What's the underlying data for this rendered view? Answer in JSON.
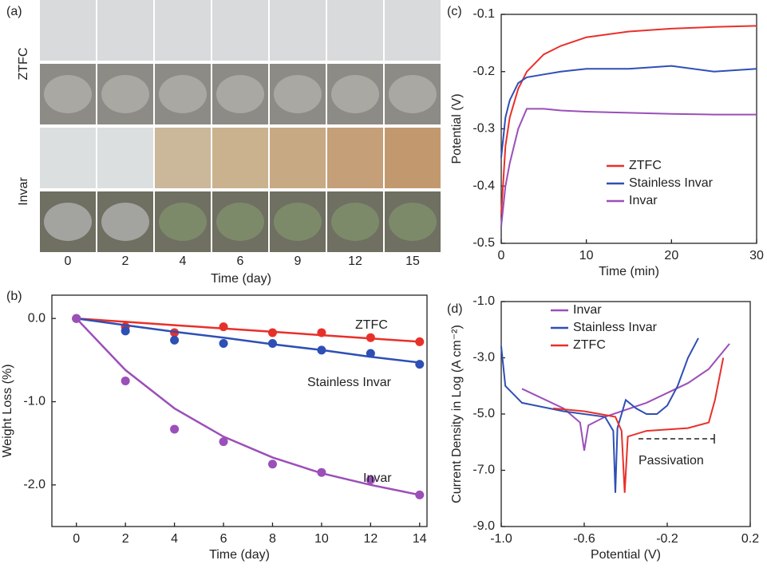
{
  "chart_data": [
    {
      "type": "image-grid",
      "panel": "(a)",
      "rows": [
        "ZTFC",
        "Invar"
      ],
      "categories": [
        "0",
        "2",
        "4",
        "6",
        "9",
        "12",
        "15"
      ],
      "xlabel": "Time (day)"
    },
    {
      "type": "scatter",
      "panel": "(b)",
      "xlabel": "Time (day)",
      "ylabel": "Weight Loss (%)",
      "x": [
        0,
        2,
        4,
        6,
        8,
        10,
        12,
        14
      ],
      "xlim": [
        -1,
        14.3
      ],
      "ylim": [
        -2.5,
        0.28
      ],
      "xticks": [
        0,
        2,
        4,
        6,
        8,
        10,
        12,
        14
      ],
      "yticks": [
        {
          "value": 0,
          "label": "0.0"
        },
        {
          "value": -1,
          "label": "-1.0"
        },
        {
          "value": -2,
          "label": "-2.0"
        }
      ],
      "series": [
        {
          "name": "ZTFC",
          "color": "#e8302a",
          "values": [
            0,
            -0.1,
            -0.17,
            -0.1,
            -0.17,
            -0.17,
            -0.23,
            -0.28
          ],
          "fit": [
            0,
            -0.04,
            -0.08,
            -0.12,
            -0.16,
            -0.2,
            -0.24,
            -0.28
          ]
        },
        {
          "name": "Stainless Invar",
          "color": "#2e4fb5",
          "values": [
            0,
            -0.15,
            -0.26,
            -0.3,
            -0.3,
            -0.38,
            -0.42,
            -0.55
          ],
          "fit": [
            0,
            -0.08,
            -0.16,
            -0.23,
            -0.31,
            -0.38,
            -0.46,
            -0.53
          ]
        },
        {
          "name": "Invar",
          "color": "#9b4fb8",
          "values": [
            0,
            -0.75,
            -1.33,
            -1.48,
            -1.75,
            -1.85,
            -1.94,
            -2.12
          ],
          "fit": [
            0,
            -0.62,
            -1.08,
            -1.42,
            -1.67,
            -1.86,
            -2.0,
            -2.12
          ]
        }
      ]
    },
    {
      "type": "line",
      "panel": "(c)",
      "xlabel": "Time (min)",
      "ylabel": "Potential (V)",
      "x": [
        0,
        0.5,
        1,
        2,
        3,
        5,
        7,
        10,
        15,
        20,
        25,
        30
      ],
      "xlim": [
        0,
        30
      ],
      "ylim": [
        -0.5,
        -0.1
      ],
      "xticks": [
        0,
        10,
        20,
        30
      ],
      "yticks": [
        -0.5,
        -0.4,
        -0.3,
        -0.2,
        -0.1
      ],
      "series": [
        {
          "name": "ZTFC",
          "color": "#e8302a",
          "values": [
            -0.45,
            -0.33,
            -0.28,
            -0.23,
            -0.2,
            -0.17,
            -0.155,
            -0.14,
            -0.13,
            -0.125,
            -0.122,
            -0.12
          ]
        },
        {
          "name": "Stainless Invar",
          "color": "#2e4fb5",
          "values": [
            -0.35,
            -0.28,
            -0.25,
            -0.22,
            -0.21,
            -0.205,
            -0.2,
            -0.195,
            -0.195,
            -0.19,
            -0.2,
            -0.195
          ]
        },
        {
          "name": "Invar",
          "color": "#9b4fb8",
          "values": [
            -0.47,
            -0.4,
            -0.36,
            -0.3,
            -0.265,
            -0.265,
            -0.268,
            -0.27,
            -0.272,
            -0.274,
            -0.275,
            -0.275
          ]
        }
      ]
    },
    {
      "type": "line",
      "panel": "(d)",
      "xlabel": "Potential (V)",
      "ylabel": "Current Density in Log (A cm⁻²)",
      "annotation": "Passivation",
      "xlim": [
        -1,
        0.2
      ],
      "ylim": [
        -9,
        -1
      ],
      "xticks": [
        {
          "value": -1,
          "label": "-1.0"
        },
        -0.6,
        -0.2,
        0.2
      ],
      "yticks": [
        {
          "value": -1,
          "label": "-1.0"
        },
        {
          "value": -3,
          "label": "-3.0"
        },
        {
          "value": -5,
          "label": "-5.0"
        },
        {
          "value": -7,
          "label": "-7.0"
        },
        {
          "value": -9,
          "label": "-9.0"
        }
      ],
      "series": [
        {
          "name": "Invar",
          "color": "#9b4fb8",
          "x": [
            -0.9,
            -0.7,
            -0.62,
            -0.6,
            -0.58,
            -0.5,
            -0.3,
            -0.1,
            0,
            0.1
          ],
          "values": [
            -4.1,
            -4.8,
            -5.3,
            -6.3,
            -5.4,
            -5.1,
            -4.6,
            -3.9,
            -3.4,
            -2.5
          ]
        },
        {
          "name": "Stainless Invar",
          "color": "#2e4fb5",
          "x": [
            -1,
            -0.98,
            -0.9,
            -0.7,
            -0.5,
            -0.46,
            -0.45,
            -0.44,
            -0.4,
            -0.35,
            -0.3,
            -0.25,
            -0.2,
            -0.15,
            -0.1,
            -0.05
          ],
          "values": [
            -2.6,
            -4,
            -4.6,
            -4.9,
            -5.1,
            -5.6,
            -7.8,
            -5.5,
            -4.5,
            -4.8,
            -5,
            -5,
            -4.7,
            -4,
            -3,
            -2.3
          ]
        },
        {
          "name": "ZTFC",
          "color": "#e8302a",
          "x": [
            -0.75,
            -0.6,
            -0.45,
            -0.42,
            -0.405,
            -0.39,
            -0.3,
            -0.1,
            0,
            0.03,
            0.07
          ],
          "values": [
            -4.8,
            -4.9,
            -5.1,
            -5.6,
            -7.8,
            -5.8,
            -5.6,
            -5.5,
            -5.3,
            -4.5,
            -3
          ]
        }
      ]
    }
  ]
}
